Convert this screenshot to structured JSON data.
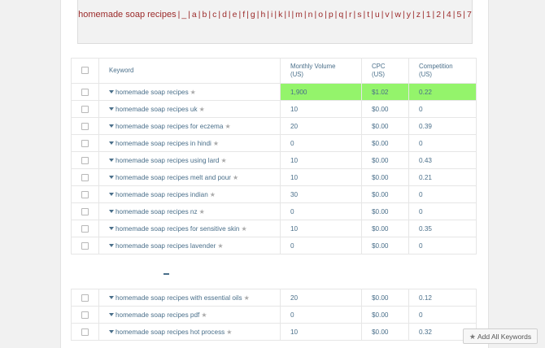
{
  "alphabet": {
    "lead": "homemade soap recipes",
    "sep": "|",
    "links": [
      "_",
      "a",
      "b",
      "c",
      "d",
      "e",
      "f",
      "g",
      "h",
      "i",
      "k",
      "l",
      "m",
      "n",
      "o",
      "p",
      "q",
      "r",
      "s",
      "t",
      "u",
      "v",
      "w",
      "y",
      "z",
      "1",
      "2",
      "4",
      "5",
      "7"
    ]
  },
  "table": {
    "headers": {
      "keyword": "Keyword",
      "volume": [
        "Monthly Volume",
        "(US)"
      ],
      "cpc": [
        "CPC",
        "(US)"
      ],
      "competition": [
        "Competition",
        "(US)"
      ]
    },
    "rows_top": [
      {
        "keyword": "homemade soap recipes",
        "volume": "1,900",
        "cpc": "$1.02",
        "competition": "0.22",
        "highlight": true
      },
      {
        "keyword": "homemade soap recipes uk",
        "volume": "10",
        "cpc": "$0.00",
        "competition": "0"
      },
      {
        "keyword": "homemade soap recipes for eczema",
        "volume": "20",
        "cpc": "$0.00",
        "competition": "0.39"
      },
      {
        "keyword": "homemade soap recipes in hindi",
        "volume": "0",
        "cpc": "$0.00",
        "competition": "0"
      },
      {
        "keyword": "homemade soap recipes using lard",
        "volume": "10",
        "cpc": "$0.00",
        "competition": "0.43"
      },
      {
        "keyword": "homemade soap recipes melt and pour",
        "volume": "10",
        "cpc": "$0.00",
        "competition": "0.21"
      },
      {
        "keyword": "homemade soap recipes indian",
        "volume": "30",
        "cpc": "$0.00",
        "competition": "0"
      },
      {
        "keyword": "homemade soap recipes nz",
        "volume": "0",
        "cpc": "$0.00",
        "competition": "0"
      },
      {
        "keyword": "homemade soap recipes for sensitive skin",
        "volume": "10",
        "cpc": "$0.00",
        "competition": "0.35"
      },
      {
        "keyword": "homemade soap recipes lavender",
        "volume": "0",
        "cpc": "$0.00",
        "competition": "0"
      }
    ],
    "rows_bottom": [
      {
        "keyword": "homemade soap recipes with essential oils",
        "volume": "20",
        "cpc": "$0.00",
        "competition": "0.12"
      },
      {
        "keyword": "homemade soap recipes pdf",
        "volume": "0",
        "cpc": "$0.00",
        "competition": "0"
      },
      {
        "keyword": "homemade soap recipes hot process",
        "volume": "10",
        "cpc": "$0.00",
        "competition": "0.32"
      }
    ]
  },
  "add_all": {
    "label": "Add All Keywords",
    "icon": "star-icon"
  },
  "colors": {
    "highlight": "#94f46b",
    "alpha_link": "#9b2a2a",
    "text": "#4a6f8a"
  }
}
